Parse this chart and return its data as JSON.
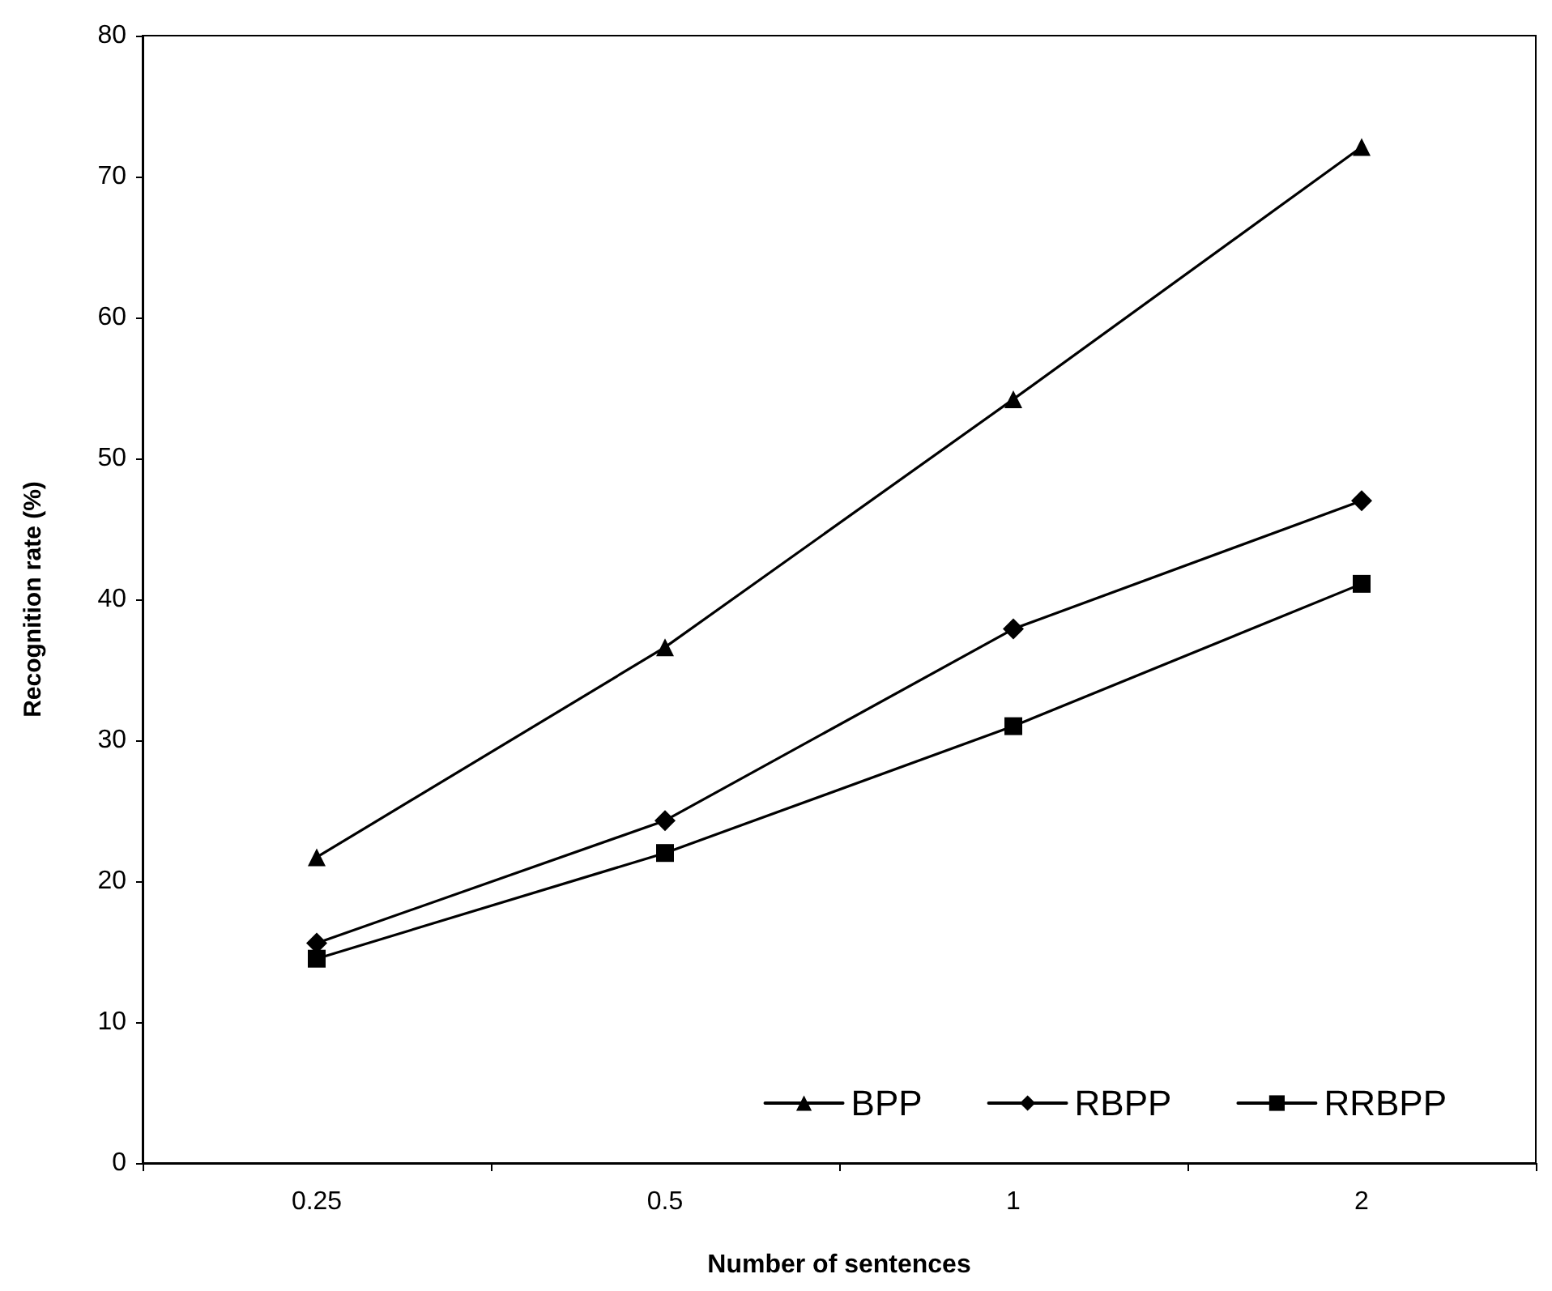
{
  "chart_data": {
    "type": "line",
    "xlabel": "Number of sentences",
    "ylabel": "Recognition rate (%)",
    "categories": [
      "0.25",
      "0.5",
      "1",
      "2"
    ],
    "series": [
      {
        "name": "BPP",
        "color": "#000000",
        "marker": "triangle",
        "values": [
          21.7,
          36.6,
          54.2,
          72.1
        ]
      },
      {
        "name": "RBPP",
        "color": "#000000",
        "marker": "diamond",
        "values": [
          15.6,
          24.3,
          37.9,
          47.0
        ]
      },
      {
        "name": "RRBPP",
        "color": "#000000",
        "marker": "square",
        "values": [
          14.5,
          22.0,
          31.0,
          41.1
        ]
      }
    ],
    "ylim": [
      0,
      80
    ],
    "yticks": [
      0,
      10,
      20,
      30,
      40,
      50,
      60,
      70,
      80
    ],
    "grid": false,
    "legend": "bottom right",
    "line_style": "solid"
  }
}
